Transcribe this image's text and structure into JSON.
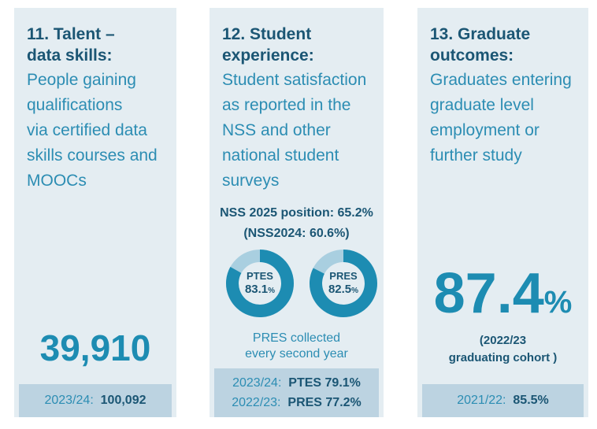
{
  "cards": [
    {
      "heading": [
        "11. Talent –",
        "data skills:"
      ],
      "body": [
        "People gaining",
        "qualifications",
        "via certified data",
        "skills courses and",
        "MOOCs"
      ],
      "figure": "39,910",
      "footer": {
        "label": "2023/24:",
        "value": "100,092"
      }
    },
    {
      "heading": [
        "12. Student",
        "experience:"
      ],
      "body": [
        "Student satisfaction",
        "as reported in the",
        "NSS and other",
        "national student",
        "surveys"
      ],
      "position": {
        "label": "NSS 2025 position:",
        "value": "65.2%",
        "previous": "(NSS2024: 60.6%)"
      },
      "donuts": [
        {
          "name": "PTES",
          "value": 83.1,
          "unit": "%"
        },
        {
          "name": "PRES",
          "value": 82.5,
          "unit": "%"
        }
      ],
      "note": [
        "PRES collected",
        "every second year"
      ],
      "footer": [
        {
          "label": "2023/24:",
          "value": "PTES 79.1%"
        },
        {
          "label": "2022/23:",
          "value": "PRES 77.2%"
        }
      ]
    },
    {
      "heading": [
        "13. Graduate",
        "outcomes:"
      ],
      "body": [
        "Graduates entering",
        "graduate level",
        "employment or",
        "further study"
      ],
      "figure": {
        "value": "87.4",
        "unit": "%"
      },
      "caption": [
        "(2022/23",
        "graduating cohort )"
      ],
      "footer": {
        "label": "2021/22:",
        "value": "85.5%"
      }
    }
  ]
}
